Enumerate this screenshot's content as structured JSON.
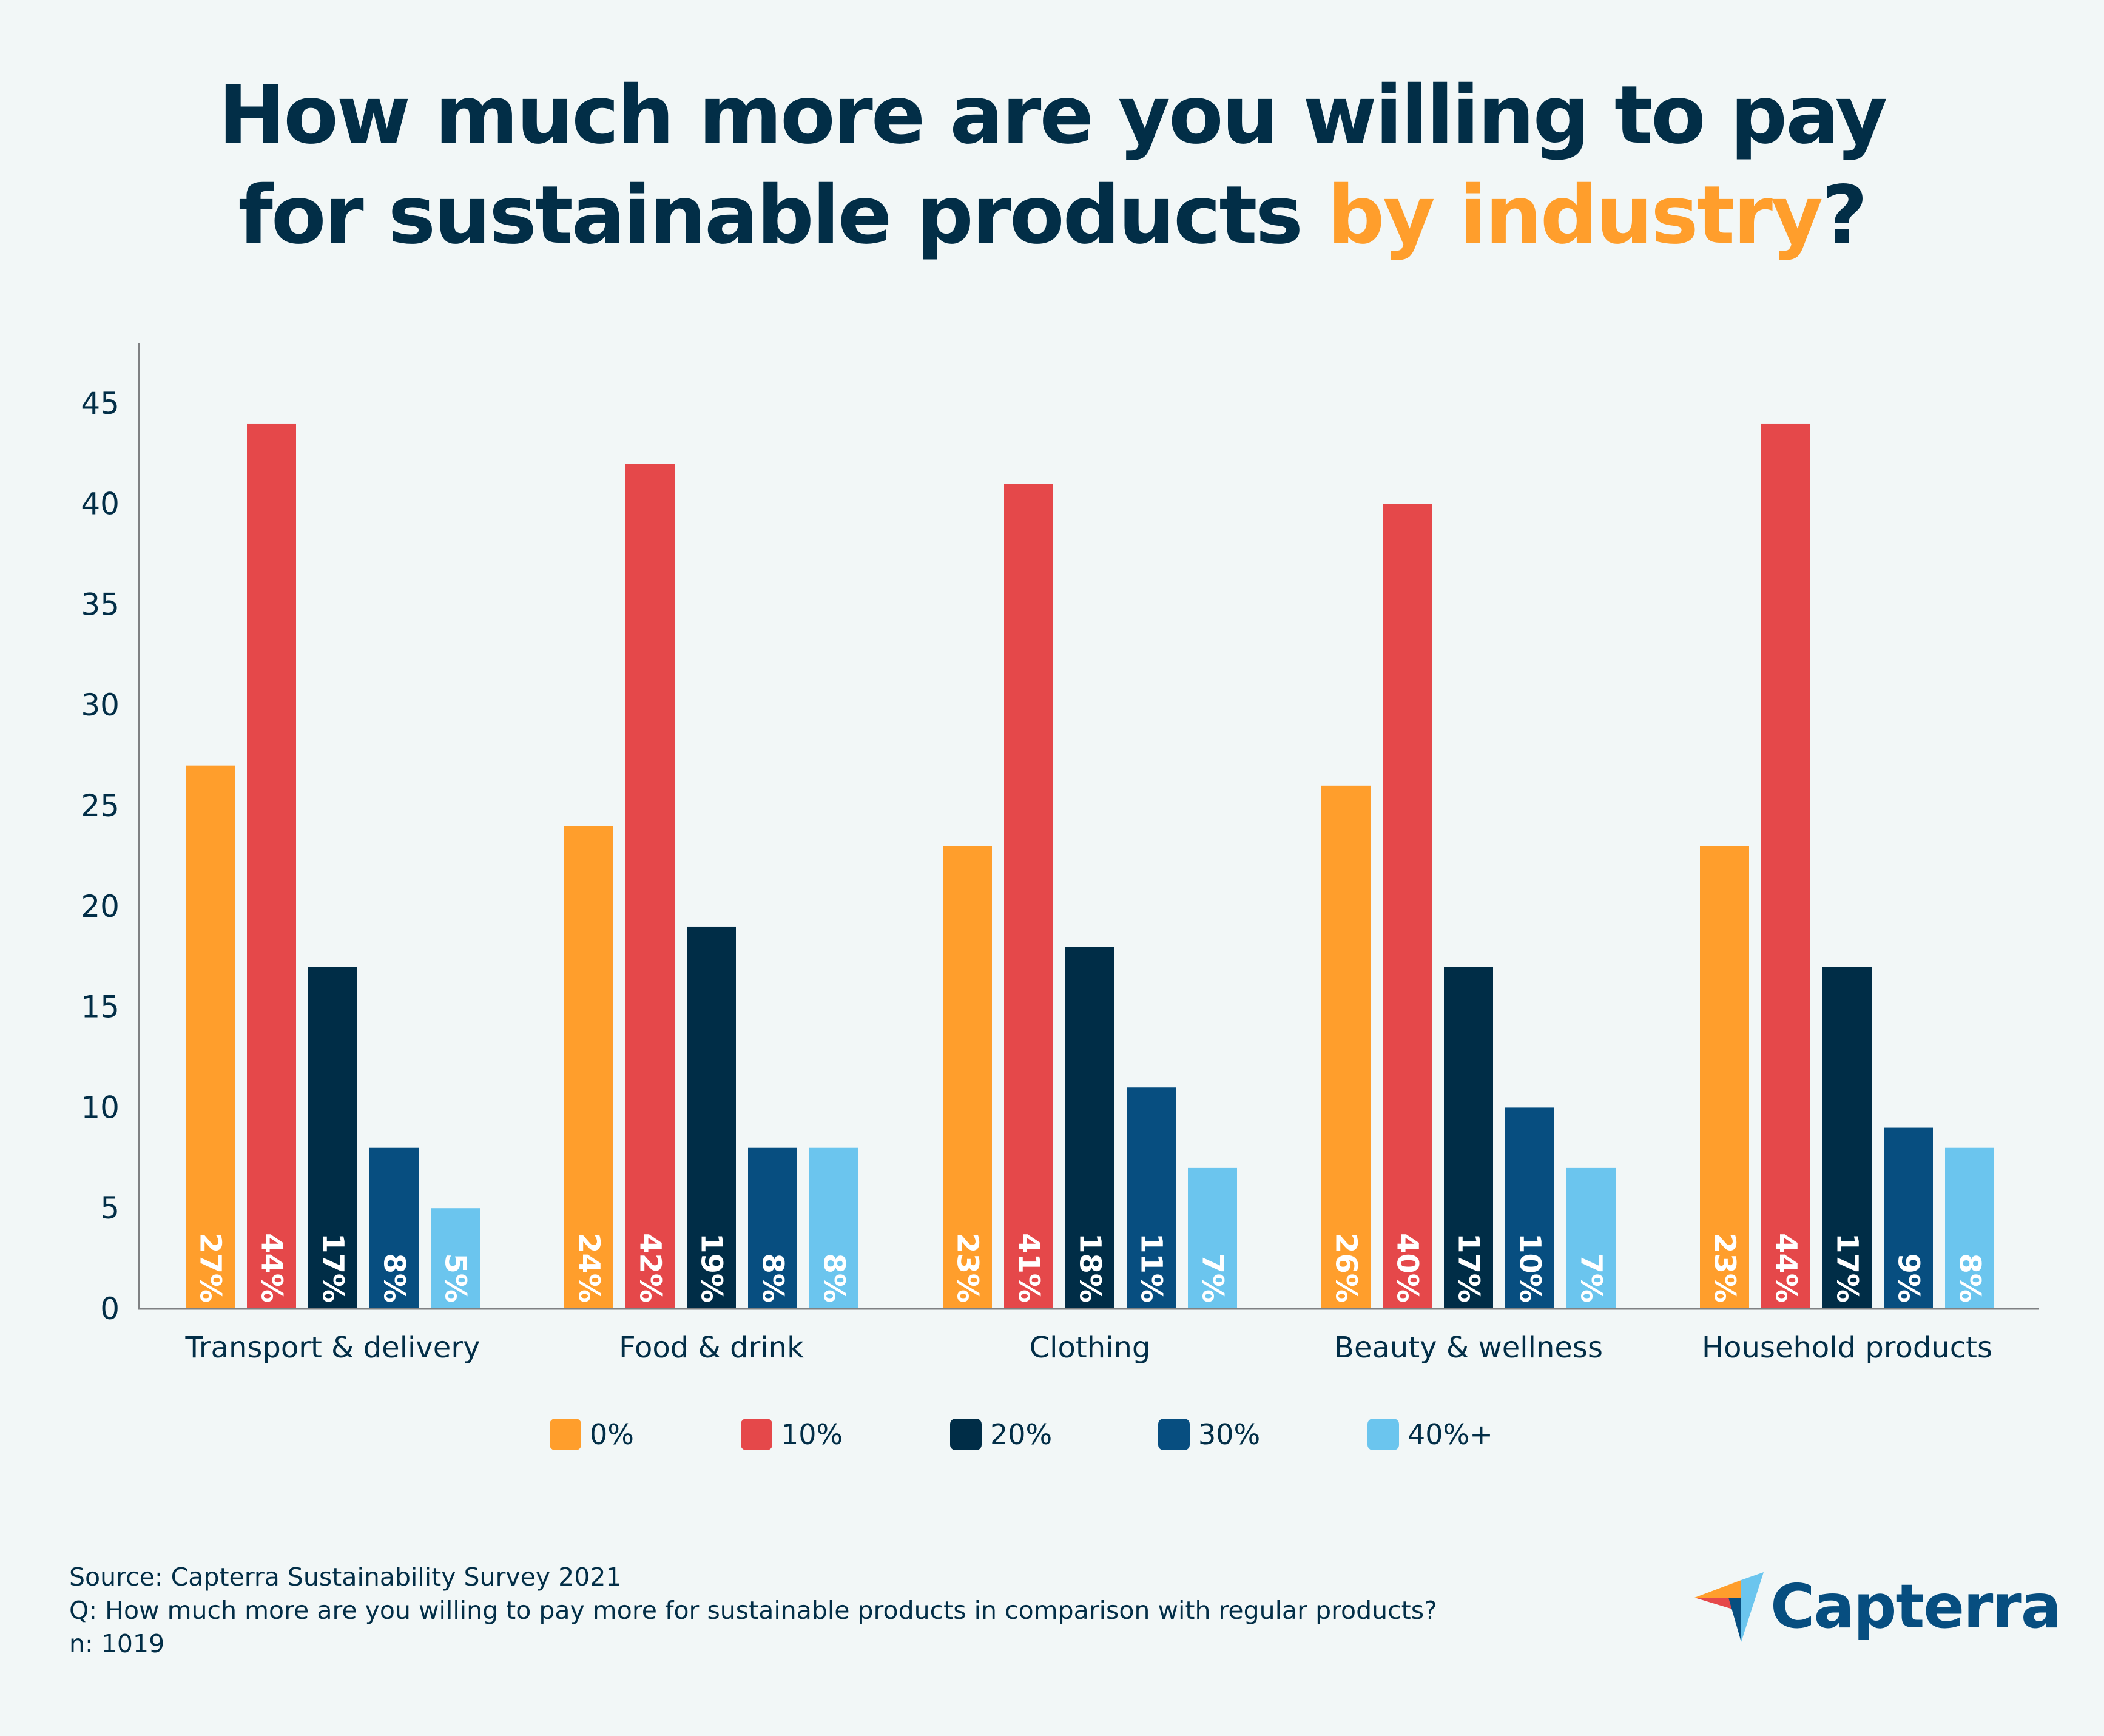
{
  "title": {
    "line1": "How much more are you willing to pay",
    "line2_prefix": "for sustainable products ",
    "line2_accent": "by industry",
    "line2_suffix": "?"
  },
  "colors": {
    "background": "#f2f7f7",
    "text": "#022e47",
    "accent": "#ff9e2c",
    "axis": "#7f8183",
    "label_text": "#ffffff"
  },
  "chart_data": {
    "type": "bar",
    "title": "How much more are you willing to pay for sustainable products by industry?",
    "xlabel": "",
    "ylabel": "",
    "ylim": [
      0,
      48
    ],
    "yticks": [
      0,
      5,
      10,
      15,
      20,
      25,
      30,
      35,
      40,
      45
    ],
    "grid": false,
    "legend_position": "bottom-center",
    "categories": [
      "Transport & delivery",
      "Food & drink",
      "Clothing",
      "Beauty & wellness",
      "Household products"
    ],
    "series": [
      {
        "name": "0%",
        "color": "#ff9e2c",
        "values": [
          27,
          24,
          23,
          26,
          23
        ],
        "labels": [
          "27%",
          "24%",
          "23%",
          "26%",
          "23%"
        ]
      },
      {
        "name": "10%",
        "color": "#e5484a",
        "values": [
          44,
          42,
          41,
          40,
          44
        ],
        "labels": [
          "44%",
          "42%",
          "41%",
          "40%",
          "44%"
        ]
      },
      {
        "name": "20%",
        "color": "#002d47",
        "values": [
          17,
          19,
          18,
          17,
          17
        ],
        "labels": [
          "17%",
          "19%",
          "18%",
          "17%",
          "17%"
        ]
      },
      {
        "name": "30%",
        "color": "#074e80",
        "values": [
          8,
          8,
          11,
          10,
          9
        ],
        "labels": [
          "8%",
          "8%",
          "11%",
          "10%",
          "9%"
        ]
      },
      {
        "name": "40%+",
        "color": "#6bc5ee",
        "values": [
          5,
          8,
          7,
          7,
          8
        ],
        "labels": [
          "5%",
          "8%",
          "7%",
          "7%",
          "8%"
        ]
      }
    ]
  },
  "footer": {
    "source": "Source: Capterra Sustainability Survey 2021",
    "question": "Q: How much more are you willing to pay more for sustainable products in comparison with regular products?",
    "sample": "n: 1019"
  },
  "logo": {
    "text": "Capterra",
    "icon": "capterra-arrow-icon",
    "colors": [
      "#ff9e2c",
      "#e5484a",
      "#074e80",
      "#6bc5ee"
    ]
  }
}
